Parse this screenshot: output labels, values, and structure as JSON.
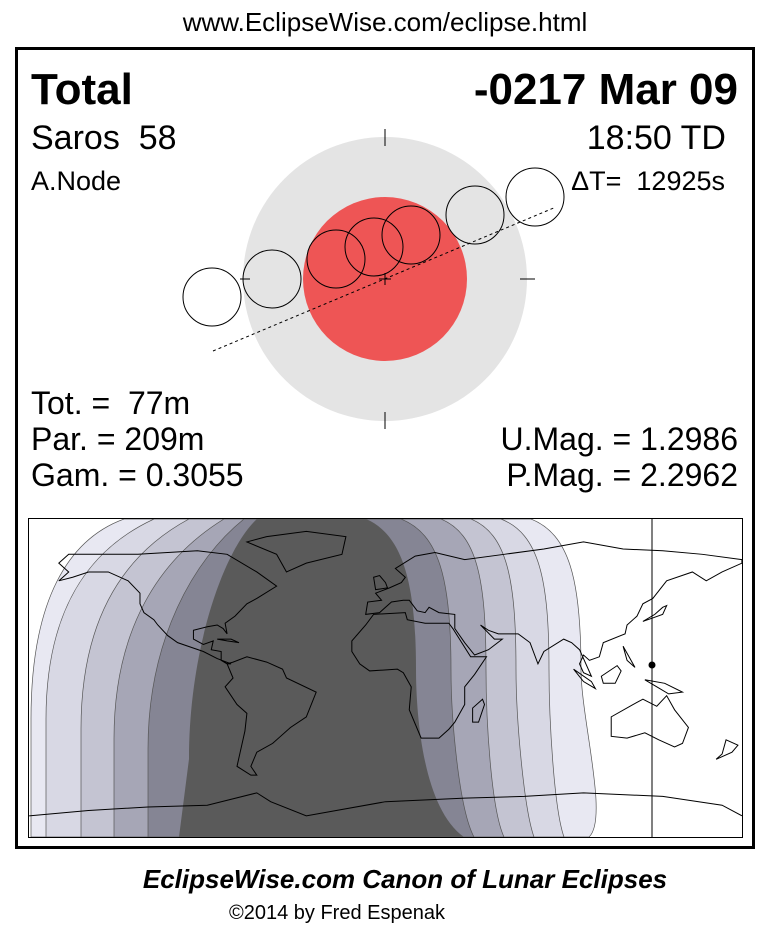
{
  "header": {
    "url": "www.EclipseWise.com/eclipse.html"
  },
  "eclipse": {
    "type": "Total",
    "date": "-0217 Mar 09",
    "saros": "Saros  58",
    "time": "18:50 TD",
    "node": "A.Node",
    "delta_t": "ΔT=  12925s"
  },
  "stats": {
    "totality": "Tot. =  77m",
    "partial": "Par. = 209m",
    "gamma": "Gam. = 0.3055",
    "umbral_mag": "U.Mag. = 1.2986",
    "penumbral_mag": "P.Mag. = 2.2962"
  },
  "colors": {
    "penumbra": "#e4e4e4",
    "umbra": "#ee5555",
    "map_bands": [
      "#e8e8f2",
      "#d8d8e4",
      "#c4c4d2",
      "#a6a6b6",
      "#858594",
      "#5a5a5a"
    ]
  },
  "footer": {
    "title": "EclipseWise.com Canon of Lunar Eclipses",
    "copyright": "©2014 by Fred Espenak"
  }
}
